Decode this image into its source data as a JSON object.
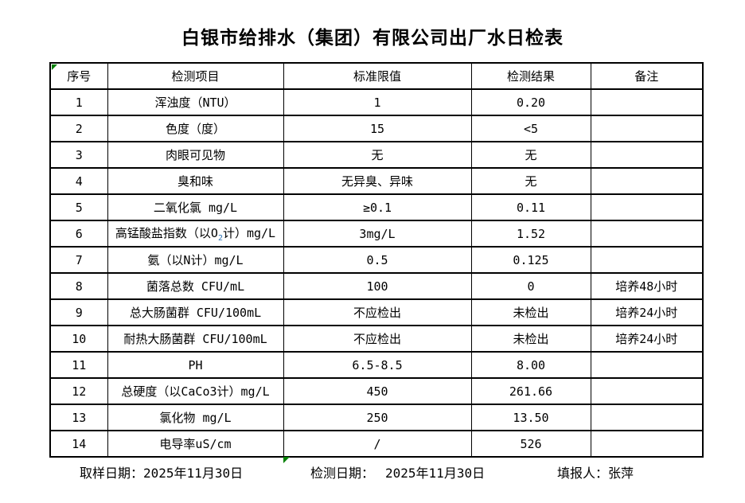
{
  "title": "白银市给排水（集团）有限公司出厂水日检表",
  "table": {
    "headers": [
      "序号",
      "检测项目",
      "标准限值",
      "检测结果",
      "备注"
    ],
    "rows": [
      {
        "no": "1",
        "item": "浑浊度（NTU）",
        "limit": "1",
        "result": "0.20",
        "note": ""
      },
      {
        "no": "2",
        "item": "色度（度）",
        "limit": "15",
        "result": "<5",
        "note": ""
      },
      {
        "no": "3",
        "item": "肉眼可见物",
        "limit": "无",
        "result": "无",
        "note": ""
      },
      {
        "no": "4",
        "item": "臭和味",
        "limit": "无异臭、异味",
        "result": "无",
        "note": ""
      },
      {
        "no": "5",
        "item": "二氧化氯 mg/L",
        "limit": "≥0.1",
        "result": "0.11",
        "note": ""
      },
      {
        "no": "6",
        "item": "高锰酸盐指数（以O₂计）mg/L",
        "limit": "3mg/L",
        "result": "1.52",
        "note": ""
      },
      {
        "no": "7",
        "item": "氨（以N计）mg/L",
        "limit": "0.5",
        "result": "0.125",
        "note": ""
      },
      {
        "no": "8",
        "item": "菌落总数 CFU/mL",
        "limit": "100",
        "result": "0",
        "note": "培养48小时"
      },
      {
        "no": "9",
        "item": "总大肠菌群 CFU/100mL",
        "limit": "不应检出",
        "result": "未检出",
        "note": "培养24小时"
      },
      {
        "no": "10",
        "item": "耐热大肠菌群 CFU/100mL",
        "limit": "不应检出",
        "result": "未检出",
        "note": "培养24小时"
      },
      {
        "no": "11",
        "item": "PH",
        "limit": "6.5-8.5",
        "result": "8.00",
        "note": ""
      },
      {
        "no": "12",
        "item": "总硬度（以CaCo3计）mg/L",
        "limit": "450",
        "result": "261.66",
        "note": ""
      },
      {
        "no": "13",
        "item": "氯化物 mg/L",
        "limit": "250",
        "result": "13.50",
        "note": ""
      },
      {
        "no": "14",
        "item": "电导率uS/cm",
        "limit": "/",
        "result": "526",
        "note": ""
      }
    ]
  },
  "footer": {
    "sample_date_label": "取样日期：",
    "sample_date": "2025年11月30日",
    "test_date_label": "检测日期：",
    "test_date": "2025年11月30日",
    "reporter_label": "填报人：",
    "reporter": "张萍"
  },
  "colors": {
    "marker_green": "#008000",
    "subscript_blue": "#2e75b6",
    "border_black": "#000000"
  },
  "icons": {
    "corner_marker": "excel-error-triangle",
    "bottom_marker": "excel-error-triangle"
  }
}
